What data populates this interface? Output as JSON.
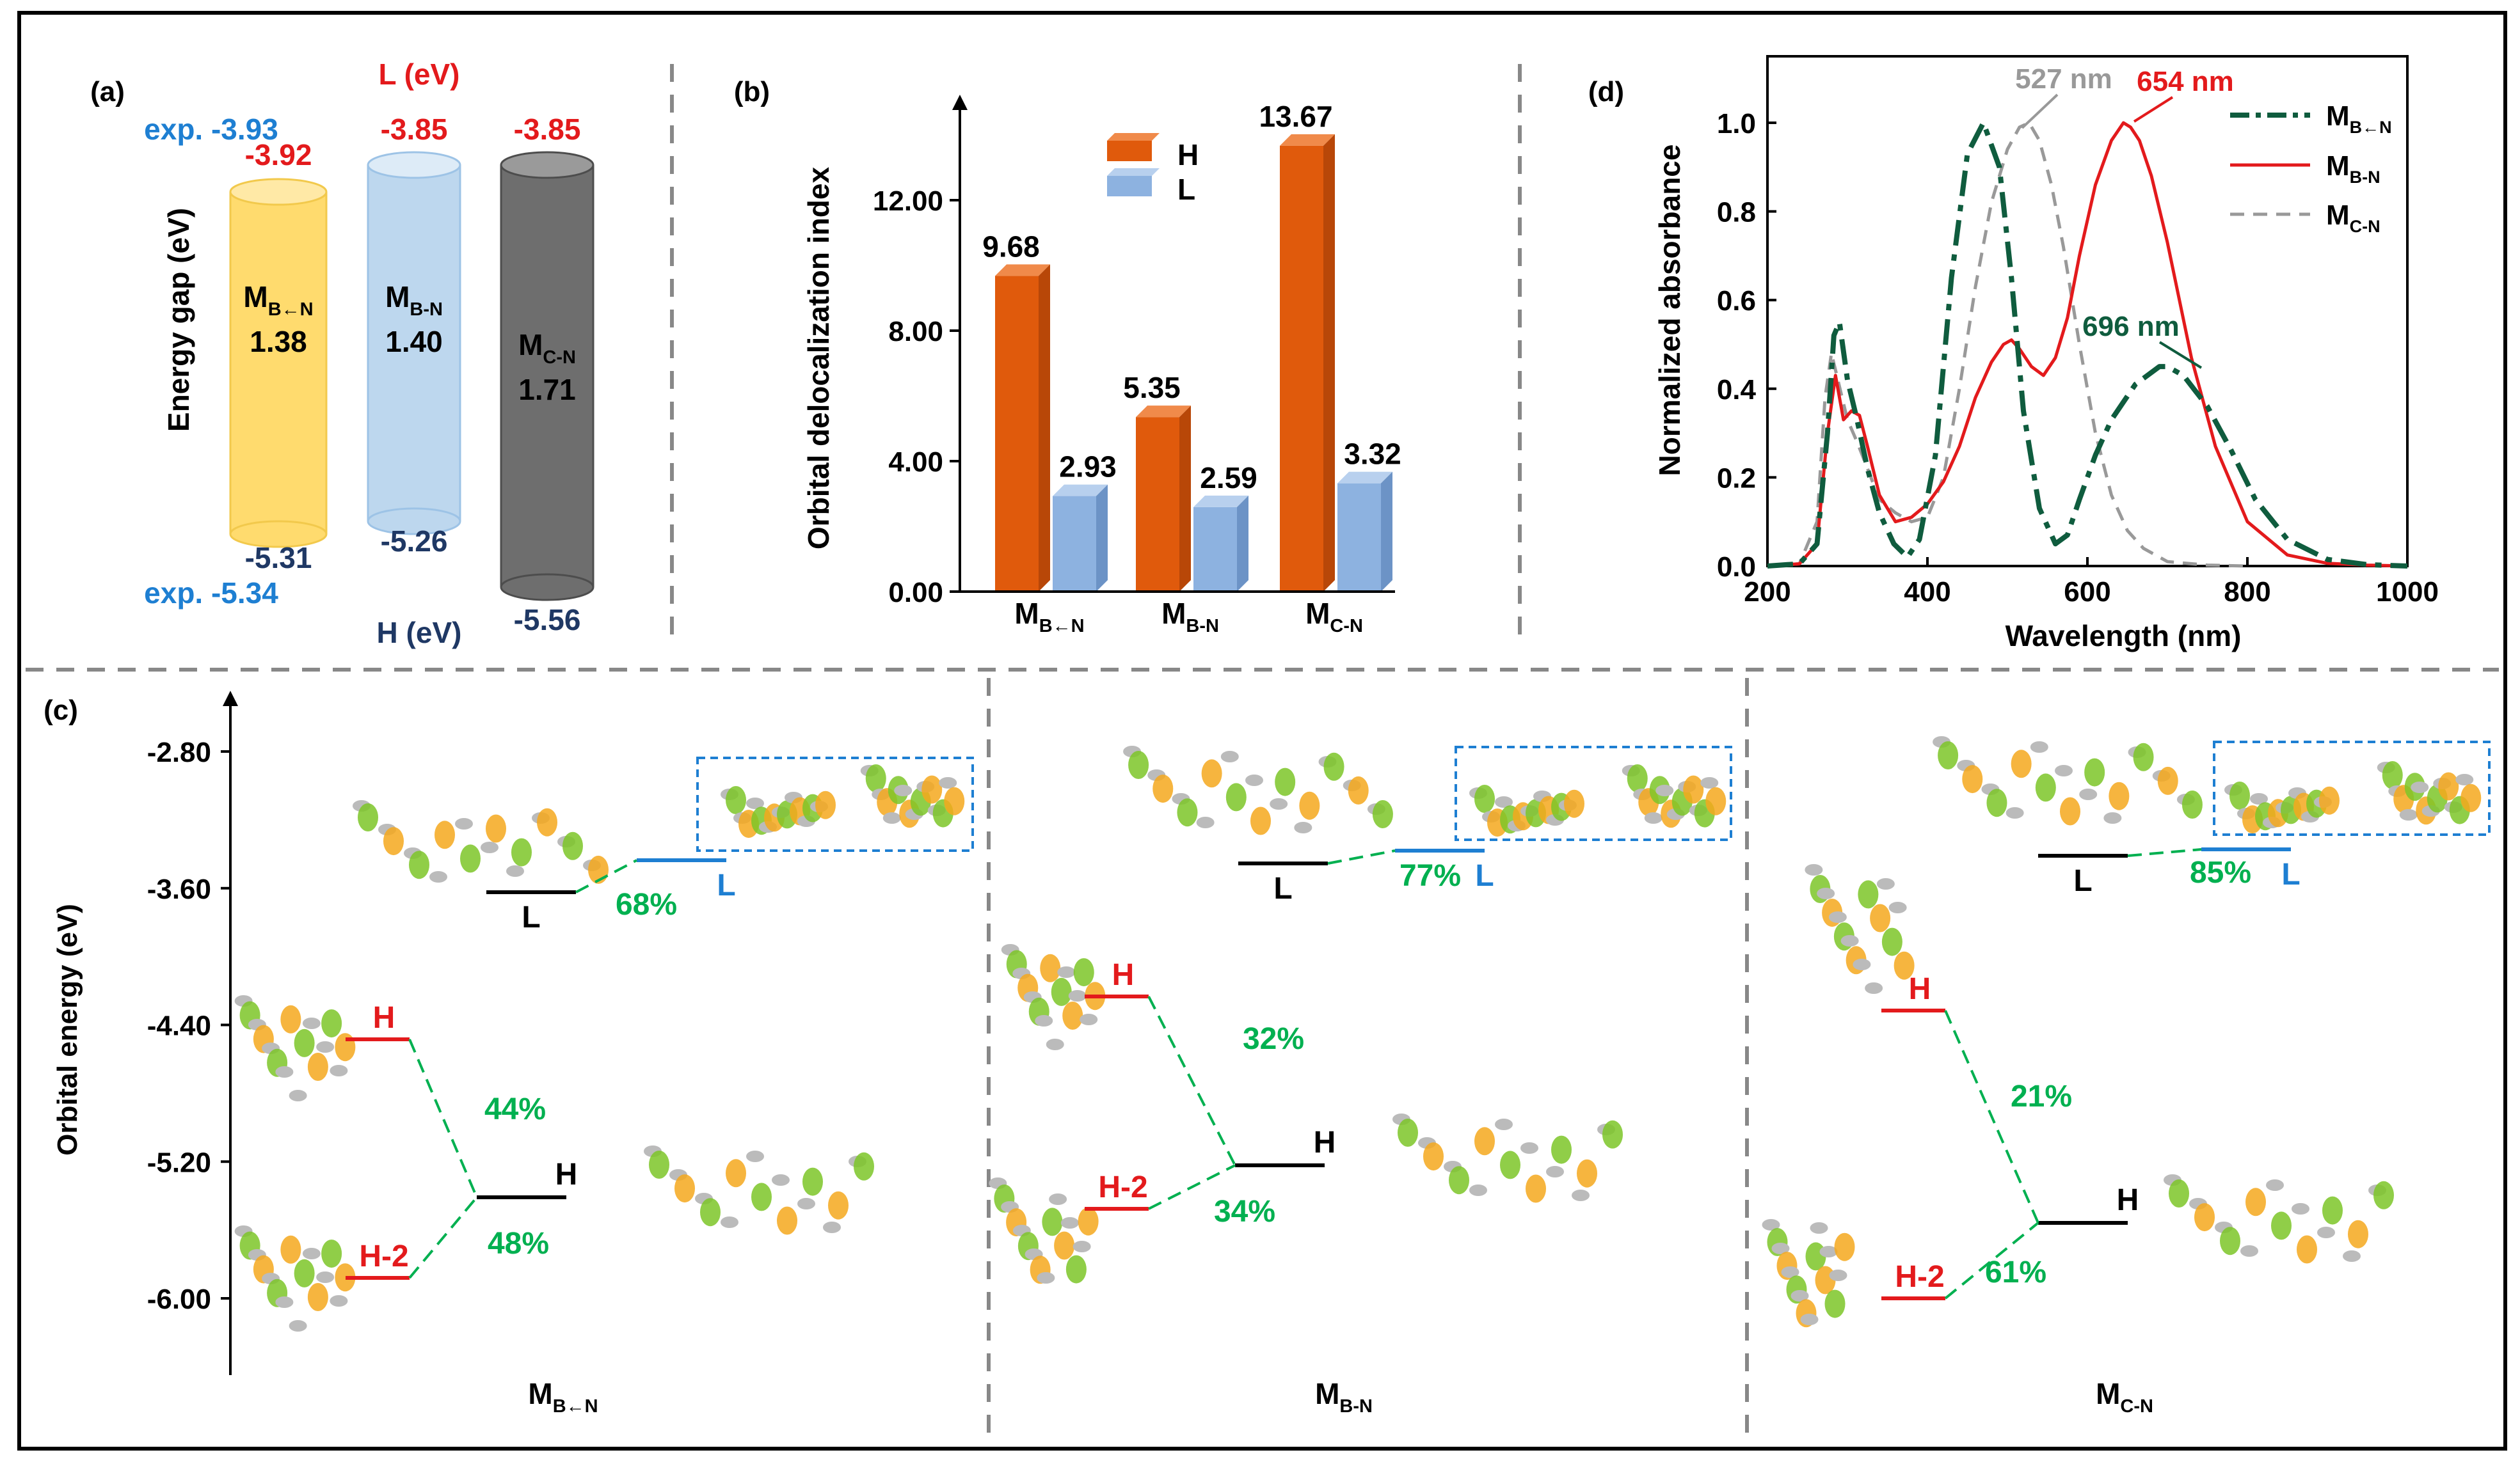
{
  "colors": {
    "h_bar": "#E05A0C",
    "l_bar": "#8DB2E0",
    "red": "#E31A1C",
    "blue": "#1E7FD2",
    "navy": "#1F3864",
    "green": "#00B050",
    "dkgreen": "#0F5C3E",
    "gray": "#888888",
    "black": "#000000",
    "cyl_yellow": "#FFDB6E",
    "cyl_blue": "#BDD7EE",
    "cyl_gray": "#6E6E6E"
  },
  "chart_data": [
    {
      "panel": "(a)",
      "type": "bar",
      "title": "",
      "ylabel": "Energy gap (eV)",
      "l_header": "L (eV)",
      "h_header": "H (eV)",
      "exp_label_top": "exp. -3.93",
      "exp_label_bottom": "exp. -5.34",
      "molecules": [
        {
          "name": "M",
          "sub": "B←N",
          "lumo": "-3.92",
          "homo": "-5.31",
          "gap": "1.38",
          "color": "yellow"
        },
        {
          "name": "M",
          "sub": "B-N",
          "lumo": "-3.85",
          "homo": "-5.26",
          "gap": "1.40",
          "color": "blue"
        },
        {
          "name": "M",
          "sub": "C-N",
          "lumo": "-3.85",
          "homo": "-5.56",
          "gap": "1.71",
          "color": "gray"
        }
      ]
    },
    {
      "panel": "(b)",
      "type": "bar",
      "ylabel": "Orbital delocalization index",
      "ylim": [
        0,
        15
      ],
      "yticks": [
        "0.00",
        "4.00",
        "8.00",
        "12.00"
      ],
      "ytick_values": [
        0,
        4,
        8,
        12
      ],
      "categories": [
        {
          "name": "M",
          "sub": "B←N"
        },
        {
          "name": "M",
          "sub": "B-N"
        },
        {
          "name": "M",
          "sub": "C-N"
        }
      ],
      "series": [
        {
          "name": "H",
          "values": [
            9.68,
            5.35,
            13.67
          ],
          "labels": [
            "9.68",
            "5.35",
            "13.67"
          ]
        },
        {
          "name": "L",
          "values": [
            2.93,
            2.59,
            3.32
          ],
          "labels": [
            "2.93",
            "2.59",
            "3.32"
          ]
        }
      ]
    },
    {
      "panel": "(c)",
      "type": "diagram",
      "ylabel": "Orbital energy (eV)",
      "yticks": [
        "-2.80",
        "-3.60",
        "-4.40",
        "-5.20",
        "-6.00"
      ],
      "ytick_values": [
        -2.8,
        -3.6,
        -4.4,
        -5.2,
        -6.0
      ],
      "groups": [
        {
          "name": "M",
          "sub": "B←N",
          "L_black": "L",
          "L_blue": "L",
          "l_pct": "68%",
          "H_red": "H",
          "H2_red": "H-2",
          "H_black": "H",
          "h_pct": "44%",
          "h2_pct": "48%"
        },
        {
          "name": "M",
          "sub": "B-N",
          "L_black": "L",
          "L_blue": "L",
          "l_pct": "77%",
          "H_red": "H",
          "H2_red": "H-2",
          "H_black": "H",
          "h_pct": "32%",
          "h2_pct": "34%"
        },
        {
          "name": "M",
          "sub": "C-N",
          "L_black": "L",
          "L_blue": "L",
          "l_pct": "85%",
          "H_red": "H",
          "H2_red": "H-2",
          "H_black": "H",
          "h_pct": "21%",
          "h2_pct": "61%"
        }
      ]
    },
    {
      "panel": "(d)",
      "type": "line",
      "xlabel": "Wavelength (nm)",
      "ylabel": "Normalized absorbance",
      "xlim": [
        200,
        1000
      ],
      "ylim": [
        0,
        1.15
      ],
      "xticks": [
        "200",
        "400",
        "600",
        "800",
        "1000"
      ],
      "xtick_values": [
        200,
        400,
        600,
        800,
        1000
      ],
      "yticks": [
        "0.0",
        "0.2",
        "0.4",
        "0.6",
        "0.8",
        "1.0"
      ],
      "ytick_values": [
        0,
        0.2,
        0.4,
        0.6,
        0.8,
        1.0
      ],
      "annotations": [
        {
          "text": "527 nm"
        },
        {
          "text": "654 nm"
        },
        {
          "text": "696 nm"
        }
      ],
      "series": [
        {
          "name": "M",
          "sub": "B←N",
          "style": "dashdot",
          "x": [
            200,
            240,
            262,
            275,
            283,
            290,
            300,
            312,
            325,
            340,
            358,
            375,
            390,
            410,
            430,
            450,
            470,
            490,
            505,
            520,
            540,
            560,
            575,
            590,
            610,
            630,
            660,
            690,
            700,
            720,
            750,
            780,
            810,
            850,
            900,
            950,
            1000
          ],
          "y": [
            0,
            0.005,
            0.05,
            0.3,
            0.52,
            0.55,
            0.42,
            0.33,
            0.22,
            0.12,
            0.05,
            0.02,
            0.06,
            0.25,
            0.65,
            0.93,
            1.0,
            0.9,
            0.65,
            0.35,
            0.13,
            0.05,
            0.07,
            0.15,
            0.25,
            0.33,
            0.41,
            0.45,
            0.45,
            0.43,
            0.36,
            0.26,
            0.15,
            0.06,
            0.015,
            0.003,
            0
          ]
        },
        {
          "name": "M",
          "sub": "B-N",
          "style": "solid",
          "x": [
            200,
            240,
            262,
            275,
            285,
            295,
            305,
            315,
            325,
            340,
            360,
            380,
            400,
            420,
            440,
            460,
            480,
            495,
            505,
            515,
            530,
            545,
            560,
            575,
            590,
            610,
            630,
            645,
            654,
            665,
            680,
            700,
            730,
            760,
            800,
            850,
            900,
            950,
            1000
          ],
          "y": [
            0,
            0.005,
            0.05,
            0.3,
            0.43,
            0.33,
            0.35,
            0.34,
            0.27,
            0.16,
            0.1,
            0.11,
            0.14,
            0.19,
            0.27,
            0.38,
            0.46,
            0.5,
            0.51,
            0.49,
            0.45,
            0.43,
            0.47,
            0.56,
            0.7,
            0.86,
            0.96,
            1.0,
            0.99,
            0.96,
            0.88,
            0.73,
            0.47,
            0.27,
            0.1,
            0.025,
            0.006,
            0.002,
            0
          ]
        },
        {
          "name": "M",
          "sub": "C-N",
          "style": "dashed",
          "x": [
            200,
            240,
            262,
            272,
            280,
            288,
            300,
            312,
            325,
            340,
            360,
            380,
            400,
            420,
            440,
            460,
            480,
            500,
            515,
            527,
            540,
            555,
            570,
            590,
            610,
            630,
            650,
            670,
            700,
            750,
            800
          ],
          "y": [
            0,
            0.005,
            0.1,
            0.38,
            0.48,
            0.42,
            0.33,
            0.28,
            0.22,
            0.15,
            0.12,
            0.1,
            0.11,
            0.2,
            0.4,
            0.63,
            0.82,
            0.94,
            0.99,
            1.0,
            0.96,
            0.86,
            0.72,
            0.5,
            0.3,
            0.16,
            0.08,
            0.04,
            0.01,
            0.002,
            0
          ]
        }
      ]
    }
  ]
}
